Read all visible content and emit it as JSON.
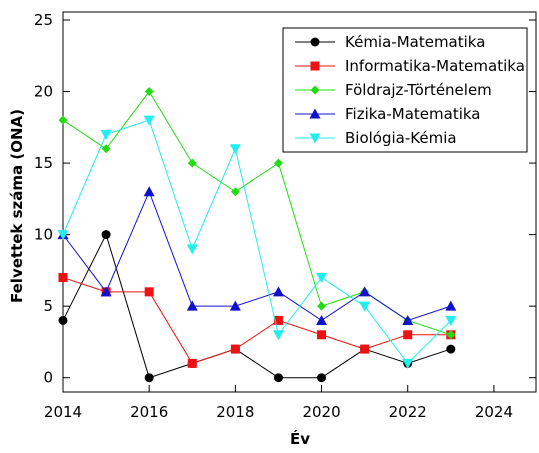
{
  "chart_data": {
    "type": "line",
    "xlabel": "Év",
    "ylabel": "Felvettek száma (ONA)",
    "x": [
      2014,
      2015,
      2016,
      2017,
      2018,
      2019,
      2020,
      2021,
      2022,
      2023
    ],
    "series": [
      {
        "name": "Kémia-Matematika",
        "color": "#000000",
        "marker": "circle",
        "values": [
          4,
          10,
          0,
          1,
          2,
          0,
          0,
          2,
          1,
          2
        ]
      },
      {
        "name": "Informatika-Matematika",
        "color": "#ee1111",
        "marker": "square",
        "values": [
          7,
          6,
          6,
          1,
          2,
          4,
          3,
          2,
          3,
          3
        ]
      },
      {
        "name": "Földrajz-Történelem",
        "color": "#22dd11",
        "marker": "diamond",
        "values": [
          18,
          16,
          20,
          15,
          13,
          15,
          5,
          6,
          4,
          3
        ]
      },
      {
        "name": "Fizika-Matematika",
        "color": "#1111cc",
        "marker": "triangle-up",
        "values": [
          10,
          6,
          13,
          5,
          5,
          6,
          4,
          6,
          4,
          5
        ]
      },
      {
        "name": "Biológia-Kémia",
        "color": "#22eeee",
        "marker": "triangle-down",
        "values": [
          10,
          17,
          18,
          9,
          16,
          3,
          7,
          5,
          1,
          4
        ]
      }
    ],
    "xlim": [
      2014,
      2025
    ],
    "ylim": [
      -1,
      25
    ],
    "xticks": [
      2014,
      2016,
      2018,
      2020,
      2022,
      2024
    ],
    "yticks": [
      0,
      5,
      10,
      15,
      20,
      25
    ],
    "legend": "upper right",
    "grid": false
  }
}
